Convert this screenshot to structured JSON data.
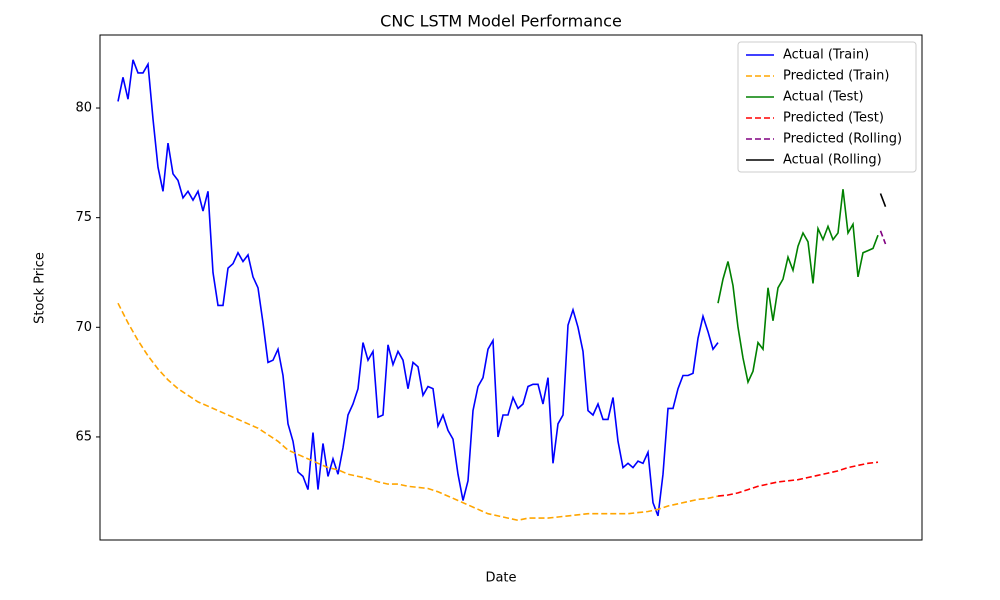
{
  "chart_data": {
    "type": "line",
    "title": "CNC LSTM Model Performance",
    "x_label": "Date",
    "y_label": "Stock Price",
    "xlim": [
      -3.6,
      160.8
    ],
    "ylim": [
      60.3,
      83.33
    ],
    "yticks": [
      65,
      70,
      75,
      80
    ],
    "legend": "upper right",
    "series": [
      {
        "name": "Actual (Train)",
        "color": "#0000ff",
        "dashed": false,
        "x": [
          0,
          1,
          2,
          3,
          4,
          5,
          6,
          7,
          8,
          9,
          10,
          11,
          12,
          13,
          14,
          15,
          16,
          17,
          18,
          19,
          20,
          21,
          22,
          23,
          24,
          25,
          26,
          27,
          28,
          29,
          30,
          31,
          32,
          33,
          34,
          35,
          36,
          37,
          38,
          39,
          40,
          41,
          42,
          43,
          44,
          45,
          46,
          47,
          48,
          49,
          50,
          51,
          52,
          53,
          54,
          55,
          56,
          57,
          58,
          59,
          60,
          61,
          62,
          63,
          64,
          65,
          66,
          67,
          68,
          69,
          70,
          71,
          72,
          73,
          74,
          75,
          76,
          77,
          78,
          79,
          80,
          81,
          82,
          83,
          84,
          85,
          86,
          87,
          88,
          89,
          90,
          91,
          92,
          93,
          94,
          95,
          96,
          97,
          98,
          99,
          100,
          101,
          102,
          103,
          104,
          105,
          106,
          107,
          108,
          109,
          110,
          111,
          112,
          113,
          114,
          115,
          116,
          117,
          118,
          119,
          120
        ],
        "values": [
          80.3,
          81.4,
          80.4,
          82.2,
          81.6,
          81.6,
          82.0,
          79.5,
          77.3,
          76.2,
          78.4,
          77.0,
          76.7,
          75.9,
          76.2,
          75.8,
          76.2,
          75.3,
          76.2,
          72.5,
          71.0,
          71.0,
          72.7,
          72.9,
          73.4,
          73.0,
          73.3,
          72.3,
          71.8,
          70.2,
          68.4,
          68.5,
          69.0,
          67.8,
          65.6,
          64.8,
          63.4,
          63.2,
          62.6,
          65.2,
          62.6,
          64.7,
          63.2,
          64.0,
          63.3,
          64.5,
          66.0,
          66.5,
          67.2,
          69.3,
          68.5,
          68.9,
          65.9,
          66.0,
          69.2,
          68.3,
          68.9,
          68.5,
          67.2,
          68.4,
          68.2,
          66.9,
          67.3,
          67.2,
          65.5,
          66.0,
          65.3,
          64.9,
          63.3,
          62.1,
          63.0,
          66.2,
          67.3,
          67.7,
          69.0,
          69.4,
          65.0,
          66.0,
          66.0,
          66.8,
          66.3,
          66.5,
          67.3,
          67.4,
          67.4,
          66.5,
          67.7,
          63.8,
          65.6,
          66.0,
          70.1,
          70.8,
          70.0,
          68.9,
          66.2,
          66.0,
          66.5,
          65.8,
          65.8,
          66.8,
          64.8,
          63.6,
          63.8,
          63.6,
          63.9,
          63.8,
          64.3,
          62.0,
          61.4,
          63.3,
          66.3,
          66.3,
          67.2,
          67.8,
          67.8,
          67.9,
          69.5,
          70.5,
          69.8,
          69.0,
          69.3
        ]
      },
      {
        "name": "Predicted (Train)",
        "color": "#ffa500",
        "dashed": true,
        "x": [
          0,
          2,
          4,
          6,
          8,
          10,
          12,
          14,
          16,
          18,
          20,
          22,
          24,
          26,
          28,
          30,
          32,
          34,
          36,
          38,
          40,
          42,
          44,
          46,
          48,
          50,
          52,
          54,
          56,
          58,
          60,
          62,
          64,
          66,
          68,
          70,
          72,
          74,
          76,
          78,
          80,
          82,
          84,
          86,
          88,
          90,
          92,
          94,
          96,
          98,
          100,
          102,
          104,
          106,
          108,
          110,
          112,
          114,
          116,
          118,
          120
        ],
        "values": [
          71.1,
          70.2,
          69.4,
          68.7,
          68.1,
          67.6,
          67.2,
          66.9,
          66.6,
          66.4,
          66.2,
          66.0,
          65.8,
          65.6,
          65.4,
          65.1,
          64.8,
          64.4,
          64.2,
          64.0,
          63.8,
          63.6,
          63.5,
          63.3,
          63.2,
          63.1,
          62.95,
          62.85,
          62.85,
          62.75,
          62.7,
          62.65,
          62.5,
          62.3,
          62.1,
          61.9,
          61.7,
          61.5,
          61.4,
          61.3,
          61.2,
          61.3,
          61.3,
          61.3,
          61.35,
          61.4,
          61.45,
          61.5,
          61.5,
          61.5,
          61.5,
          61.5,
          61.55,
          61.6,
          61.7,
          61.85,
          61.95,
          62.05,
          62.15,
          62.2,
          62.3
        ]
      },
      {
        "name": "Actual (Test)",
        "color": "#008000",
        "dashed": false,
        "x": [
          120,
          121,
          122,
          123,
          124,
          125,
          126,
          127,
          128,
          129,
          130,
          131,
          132,
          133,
          134,
          135,
          136,
          137,
          138,
          139,
          140,
          141,
          142,
          143,
          144,
          145,
          146,
          147,
          148,
          149,
          150,
          151,
          152
        ],
        "values": [
          71.1,
          72.2,
          73.0,
          71.9,
          70.0,
          68.6,
          67.5,
          68.0,
          69.3,
          69.0,
          71.8,
          70.3,
          71.8,
          72.2,
          73.2,
          72.6,
          73.7,
          74.3,
          73.9,
          72.0,
          74.5,
          74.0,
          74.6,
          74.0,
          74.3,
          76.3,
          74.3,
          74.7,
          72.3,
          73.4,
          73.5,
          73.6,
          74.2
        ]
      },
      {
        "name": "Predicted (Test)",
        "color": "#ff0000",
        "dashed": true,
        "x": [
          120,
          122,
          124,
          126,
          128,
          130,
          132,
          134,
          136,
          138,
          140,
          142,
          144,
          146,
          148,
          150,
          152
        ],
        "values": [
          62.3,
          62.35,
          62.45,
          62.6,
          62.75,
          62.85,
          62.95,
          63.0,
          63.05,
          63.15,
          63.25,
          63.35,
          63.45,
          63.6,
          63.7,
          63.8,
          63.85
        ]
      },
      {
        "name": "Predicted (Rolling)",
        "color": "#800080",
        "dashed": true,
        "x": [
          152.5,
          153.5
        ],
        "values": [
          74.4,
          73.8
        ]
      },
      {
        "name": "Actual (Rolling)",
        "color": "#000000",
        "dashed": false,
        "x": [
          152.5,
          153.5
        ],
        "values": [
          76.1,
          75.5
        ]
      }
    ]
  }
}
